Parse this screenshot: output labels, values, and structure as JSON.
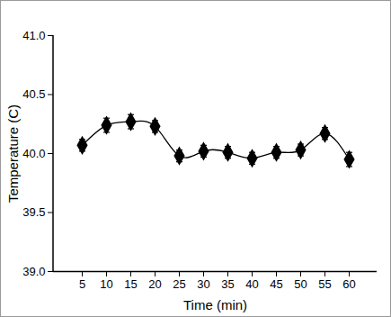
{
  "chart_data": {
    "type": "line",
    "x_label": "Time (min)",
    "y_label": "Temperature (C)",
    "categories": [
      "5",
      "10",
      "15",
      "20",
      "25",
      "30",
      "35",
      "40",
      "45",
      "50",
      "55",
      "60"
    ],
    "values": [
      40.07,
      40.24,
      40.27,
      40.23,
      39.98,
      40.02,
      40.01,
      39.96,
      40.01,
      40.03,
      40.17,
      39.95
    ],
    "errors": [
      0.05,
      0.06,
      0.06,
      0.05,
      0.05,
      0.05,
      0.05,
      0.05,
      0.05,
      0.05,
      0.05,
      0.06
    ],
    "color": "#000000",
    "marker": "diamond",
    "line_style": "solid",
    "ylim": [
      39,
      41
    ],
    "yticks": [
      {
        "value": 39,
        "label": "39.0"
      },
      39.5,
      {
        "value": 40,
        "label": "40.0"
      },
      40.5,
      {
        "value": 41,
        "label": "41.0"
      }
    ],
    "grid": false
  }
}
